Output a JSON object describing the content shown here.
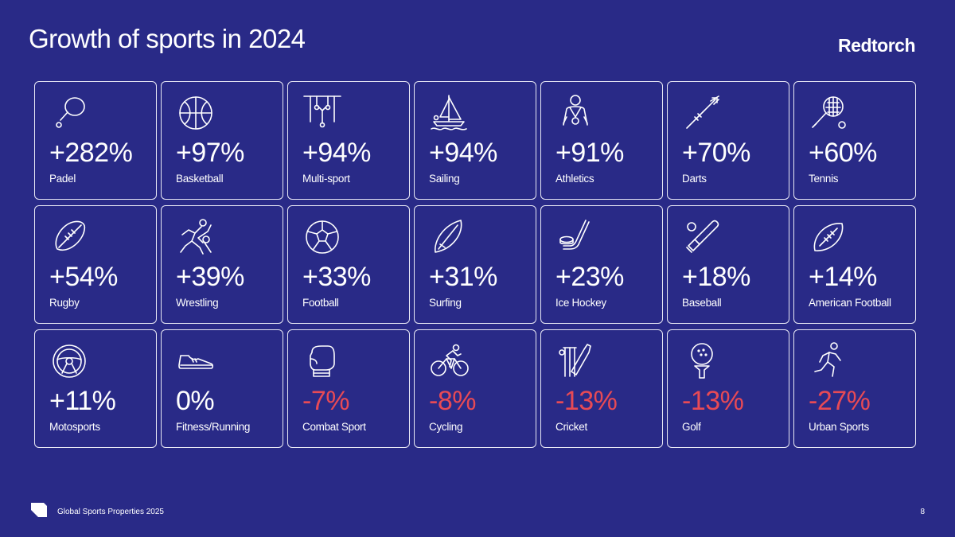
{
  "header": {
    "title": "Growth of sports in 2024",
    "brand": "Redtorch"
  },
  "colors": {
    "background": "#292a87",
    "positive": "#ffffff",
    "negative": "#e84a55"
  },
  "sports": [
    {
      "value": "+282%",
      "label": "Padel",
      "icon": "padel-icon"
    },
    {
      "value": "+97%",
      "label": "Basketball",
      "icon": "basketball-icon"
    },
    {
      "value": "+94%",
      "label": "Multi-sport",
      "icon": "gymnastics-rings-icon"
    },
    {
      "value": "+94%",
      "label": "Sailing",
      "icon": "sailboat-icon"
    },
    {
      "value": "+91%",
      "label": "Athletics",
      "icon": "athlete-medal-icon"
    },
    {
      "value": "+70%",
      "label": "Darts",
      "icon": "dart-icon"
    },
    {
      "value": "+60%",
      "label": "Tennis",
      "icon": "tennis-racket-icon"
    },
    {
      "value": "+54%",
      "label": "Rugby",
      "icon": "rugby-ball-icon"
    },
    {
      "value": "+39%",
      "label": "Wrestling",
      "icon": "wrestlers-icon"
    },
    {
      "value": "+33%",
      "label": "Football",
      "icon": "soccer-ball-icon"
    },
    {
      "value": "+31%",
      "label": "Surfing",
      "icon": "surfboard-icon"
    },
    {
      "value": "+23%",
      "label": "Ice Hockey",
      "icon": "hockey-stick-icon"
    },
    {
      "value": "+18%",
      "label": "Baseball",
      "icon": "baseball-bat-icon"
    },
    {
      "value": "+14%",
      "label": "American Football",
      "icon": "american-football-icon"
    },
    {
      "value": "+11%",
      "label": "Motosports",
      "icon": "steering-wheel-icon"
    },
    {
      "value": "0%",
      "label": "Fitness/Running",
      "icon": "sneaker-icon"
    },
    {
      "value": "-7%",
      "label": "Combat Sport",
      "icon": "boxing-glove-icon"
    },
    {
      "value": "-8%",
      "label": "Cycling",
      "icon": "cyclist-icon"
    },
    {
      "value": "-13%",
      "label": "Cricket",
      "icon": "cricket-icon"
    },
    {
      "value": "-13%",
      "label": "Golf",
      "icon": "golf-ball-tee-icon"
    },
    {
      "value": "-27%",
      "label": "Urban Sports",
      "icon": "runner-icon"
    }
  ],
  "footer": {
    "text": "Global Sports Properties 2025",
    "page": "8"
  }
}
